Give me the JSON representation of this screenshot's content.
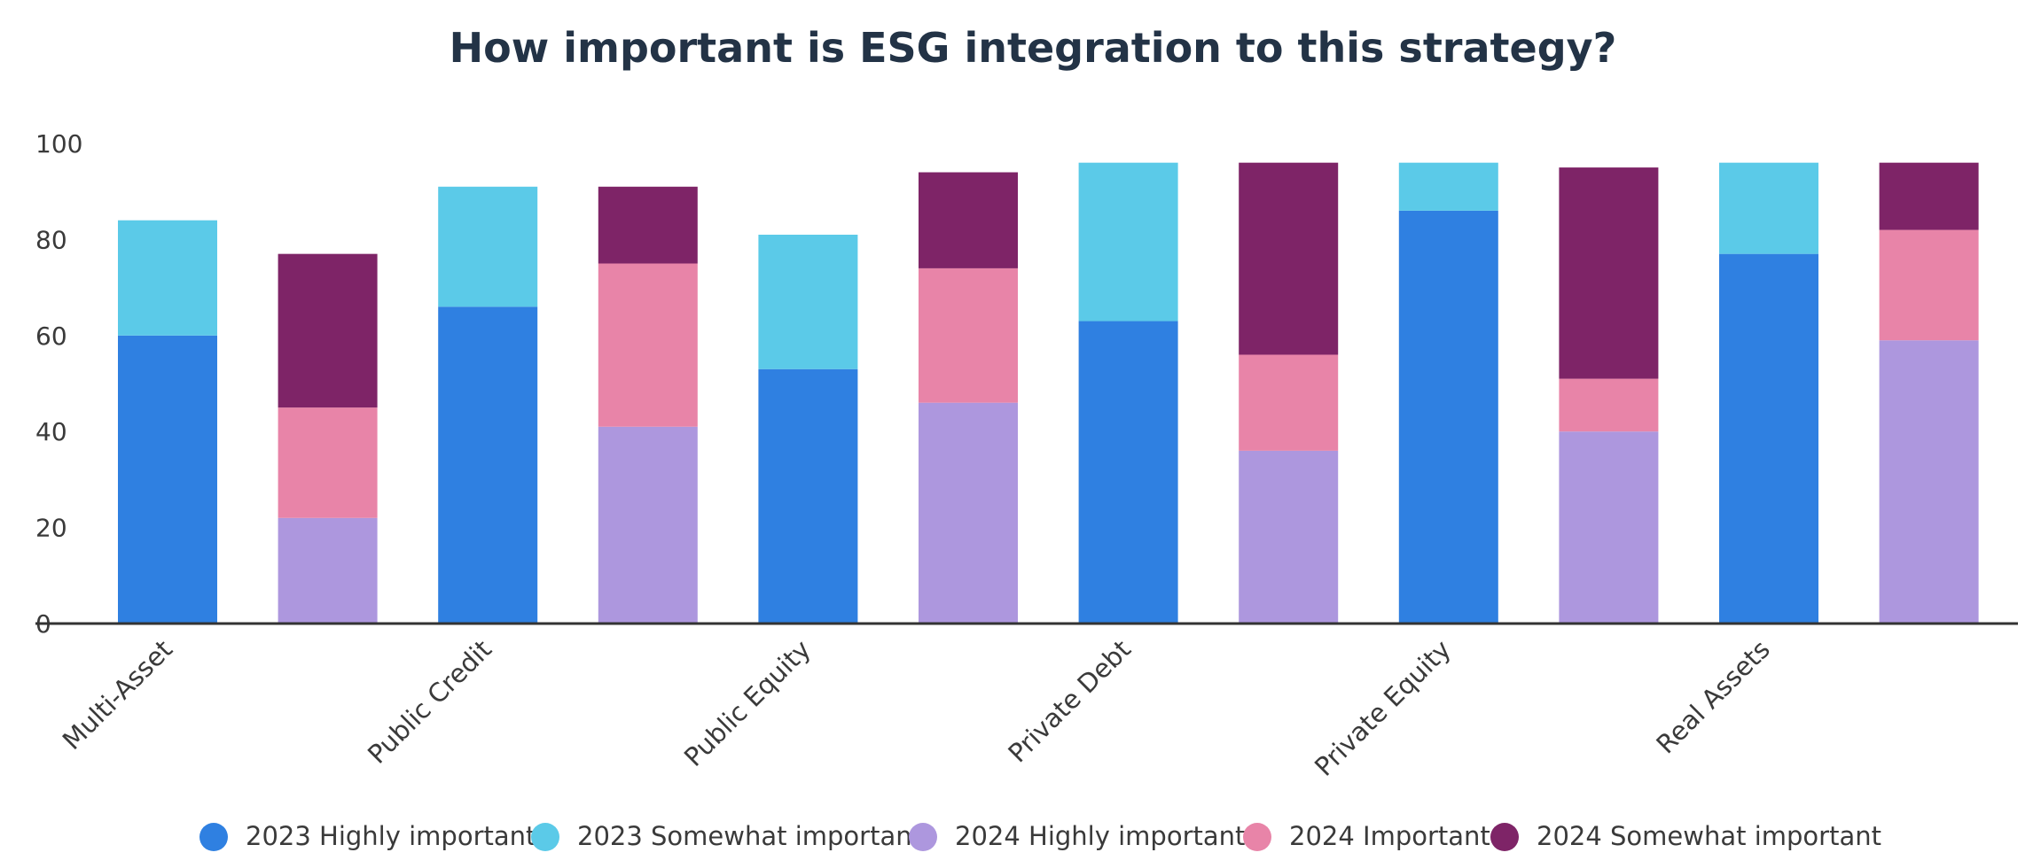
{
  "chart_data": {
    "type": "bar",
    "stacked": true,
    "title": "How important is ESG integration to this strategy?",
    "xlabel": "",
    "ylabel": "",
    "ylim": [
      0,
      100
    ],
    "yticks": [
      0,
      20,
      40,
      60,
      80,
      100
    ],
    "grid": false,
    "legend_position": "bottom",
    "category_labels": [
      "Multi-Asset",
      "Public Credit",
      "Public Equity",
      "Private Debt",
      "Private Equity",
      "Real Assets"
    ],
    "bars": [
      {
        "category": "Multi-Asset",
        "year": "2023",
        "segments": [
          60,
          24
        ]
      },
      {
        "category": "Multi-Asset",
        "year": "2024",
        "segments": [
          22,
          23,
          32
        ]
      },
      {
        "category": "Public Credit",
        "year": "2023",
        "segments": [
          66,
          25
        ]
      },
      {
        "category": "Public Credit",
        "year": "2024",
        "segments": [
          41,
          34,
          16
        ]
      },
      {
        "category": "Public Equity",
        "year": "2023",
        "segments": [
          53,
          28
        ]
      },
      {
        "category": "Public Equity",
        "year": "2024",
        "segments": [
          46,
          28,
          20
        ]
      },
      {
        "category": "Private Debt",
        "year": "2023",
        "segments": [
          63,
          33
        ]
      },
      {
        "category": "Private Debt",
        "year": "2024",
        "segments": [
          36,
          20,
          40
        ]
      },
      {
        "category": "Private Equity",
        "year": "2023",
        "segments": [
          86,
          10
        ]
      },
      {
        "category": "Private Equity",
        "year": "2024",
        "segments": [
          40,
          11,
          44
        ]
      },
      {
        "category": "Real Assets",
        "year": "2023",
        "segments": [
          77,
          19
        ]
      },
      {
        "category": "Real Assets",
        "year": "2024",
        "segments": [
          59,
          23,
          14
        ]
      }
    ],
    "series": [
      {
        "name": "2023 Highly important",
        "color": "#2f80e1"
      },
      {
        "name": "2023 Somewhat important",
        "color": "#5bcae8"
      },
      {
        "name": "2024 Highly important",
        "color": "#ad97de"
      },
      {
        "name": "2024 Important",
        "color": "#e884a8"
      },
      {
        "name": "2024 Somewhat important",
        "color": "#7e2467"
      }
    ],
    "axis_color": "#333333"
  }
}
